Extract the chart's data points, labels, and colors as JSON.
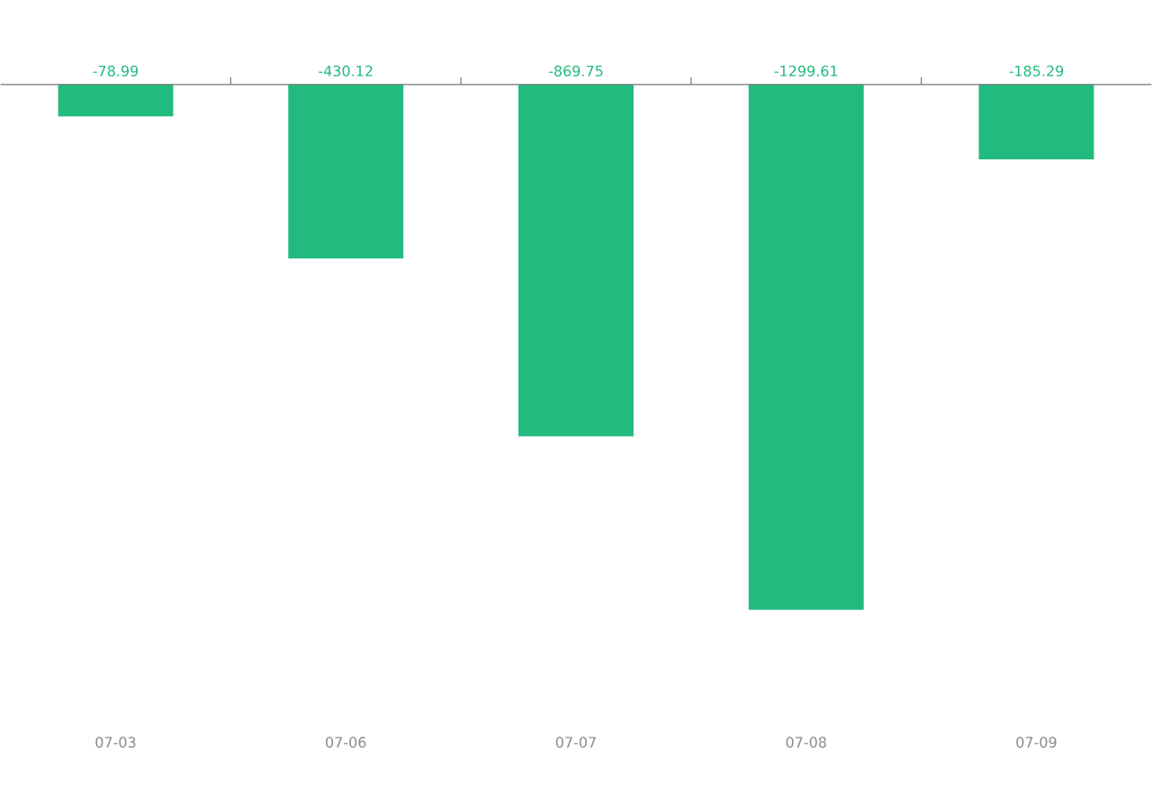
{
  "chart_data": {
    "type": "bar",
    "categories": [
      "07-03",
      "07-06",
      "07-07",
      "07-08",
      "07-09"
    ],
    "values": [
      -78.99,
      -430.12,
      -869.75,
      -1299.61,
      -185.29
    ],
    "color": "#22bb7f",
    "data_labels": true
  }
}
